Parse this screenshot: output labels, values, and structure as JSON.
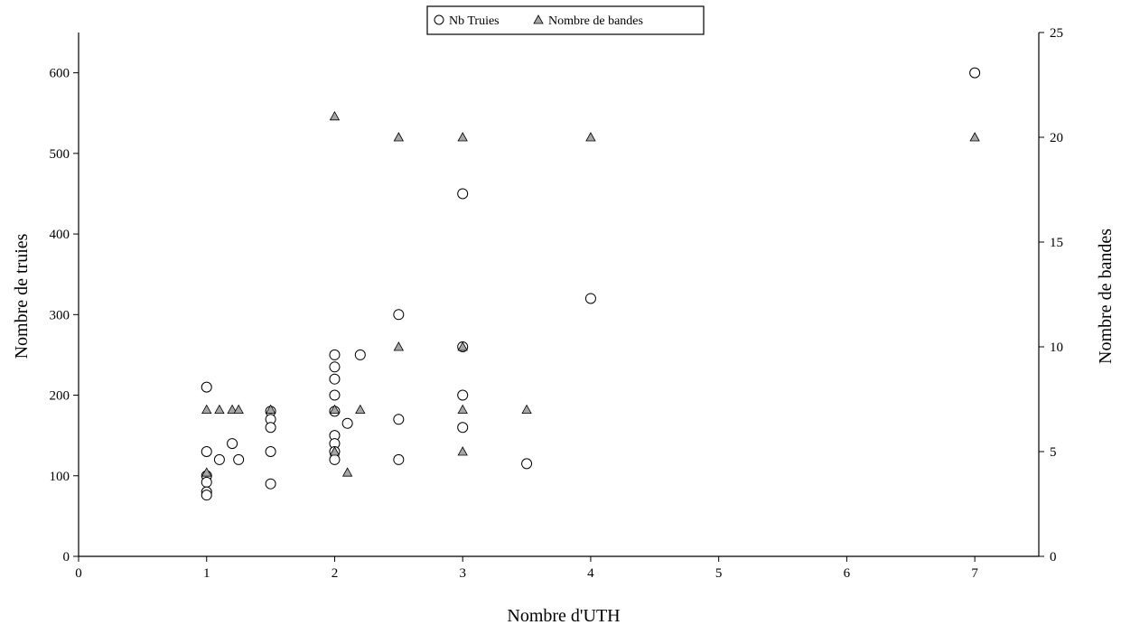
{
  "chart_data": {
    "type": "scatter",
    "title": "",
    "xlabel": "Nombre d'UTH",
    "ylabel": "Nombre de truies",
    "y2label": "Nombre de bandes",
    "xlim": [
      0,
      7.5
    ],
    "ylim": [
      0,
      650
    ],
    "y2lim": [
      0,
      25
    ],
    "x_ticks": [
      "0",
      "1",
      "2",
      "3",
      "4",
      "5",
      "6",
      "7"
    ],
    "y_ticks": [
      "0",
      "100",
      "200",
      "300",
      "400",
      "500",
      "600"
    ],
    "y2_ticks": [
      "0",
      "5",
      "10",
      "15",
      "20",
      "25"
    ],
    "grid": false,
    "legend": {
      "position": "top-center",
      "entries": [
        "Nb Truies",
        "Nombre de bandes"
      ]
    },
    "series": [
      {
        "name": "Nb Truies",
        "axis": "left",
        "marker": "circle",
        "color": "#ffffff",
        "points": [
          [
            1,
            210
          ],
          [
            1,
            130
          ],
          [
            1,
            100
          ],
          [
            1,
            92
          ],
          [
            1,
            80
          ],
          [
            1,
            76
          ],
          [
            1.1,
            120
          ],
          [
            1.2,
            140
          ],
          [
            1.25,
            120
          ],
          [
            1.5,
            180
          ],
          [
            1.5,
            170
          ],
          [
            1.5,
            160
          ],
          [
            1.5,
            130
          ],
          [
            1.5,
            90
          ],
          [
            2,
            250
          ],
          [
            2,
            235
          ],
          [
            2,
            220
          ],
          [
            2,
            200
          ],
          [
            2,
            180
          ],
          [
            2,
            150
          ],
          [
            2,
            140
          ],
          [
            2,
            130
          ],
          [
            2,
            120
          ],
          [
            2.1,
            165
          ],
          [
            2.2,
            250
          ],
          [
            2.5,
            300
          ],
          [
            2.5,
            170
          ],
          [
            2.5,
            120
          ],
          [
            3,
            450
          ],
          [
            3,
            260
          ],
          [
            3,
            200
          ],
          [
            3,
            160
          ],
          [
            3.5,
            115
          ],
          [
            4,
            320
          ],
          [
            7,
            600
          ]
        ]
      },
      {
        "name": "Nombre de bandes",
        "axis": "right",
        "marker": "triangle",
        "color": "#a6a6a6",
        "points": [
          [
            1,
            7
          ],
          [
            1,
            4
          ],
          [
            1.1,
            7
          ],
          [
            1.2,
            7
          ],
          [
            1.25,
            7
          ],
          [
            1.5,
            7
          ],
          [
            2,
            21
          ],
          [
            2,
            7
          ],
          [
            2,
            5
          ],
          [
            2.1,
            4
          ],
          [
            2.2,
            7
          ],
          [
            2.5,
            20
          ],
          [
            2.5,
            10
          ],
          [
            3,
            20
          ],
          [
            3,
            10
          ],
          [
            3,
            7
          ],
          [
            3,
            5
          ],
          [
            3.5,
            7
          ],
          [
            4,
            20
          ],
          [
            7,
            20
          ]
        ]
      }
    ]
  }
}
